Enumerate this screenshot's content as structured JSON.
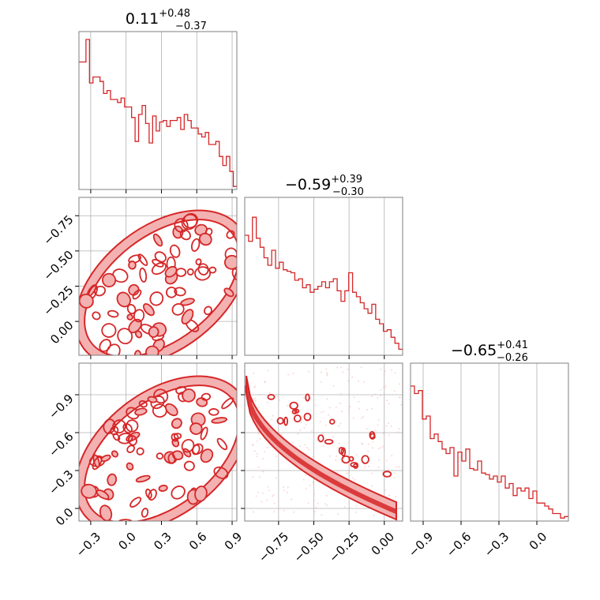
{
  "colors": {
    "series": "#d62728",
    "fill_dark": "#e35a5a",
    "fill_light": "#f3b1b1",
    "frame": "#7f7f7f",
    "grid": "#b0b0b0"
  },
  "chart_data": {
    "type": "corner",
    "series_color": "#d62728",
    "parameters": [
      {
        "title_median": "0.11",
        "title_plus": "+0.48",
        "title_minus": "−0.37",
        "range": [
          -0.4,
          0.94
        ],
        "ticks": [
          -0.3,
          0.0,
          0.3,
          0.6,
          0.9
        ],
        "tick_labels": [
          "−0.3",
          "0.0",
          "0.3",
          "0.6",
          "0.9"
        ],
        "hist_edges": [
          -0.4,
          0.94
        ],
        "hist": [
          0.85,
          0.85,
          1.0,
          0.71,
          0.75,
          0.75,
          0.72,
          0.64,
          0.66,
          0.6,
          0.6,
          0.58,
          0.61,
          0.55,
          0.55,
          0.48,
          0.32,
          0.5,
          0.56,
          0.44,
          0.31,
          0.49,
          0.39,
          0.45,
          0.46,
          0.42,
          0.46,
          0.46,
          0.48,
          0.4,
          0.5,
          0.46,
          0.41,
          0.41,
          0.37,
          0.35,
          0.38,
          0.3,
          0.3,
          0.32,
          0.22,
          0.16,
          0.22,
          0.12,
          0.02
        ]
      },
      {
        "title_median": "−0.59",
        "title_plus": "+0.39",
        "title_minus": "−0.30",
        "range": [
          -0.99,
          0.13
        ],
        "ticks": [
          -0.75,
          -0.5,
          -0.25,
          0.0
        ],
        "tick_labels": [
          "−0.75",
          "−0.50",
          "−0.25",
          "0.00"
        ],
        "hist_edges": [
          -0.99,
          0.13
        ],
        "hist": [
          0.8,
          0.76,
          0.92,
          0.78,
          0.72,
          0.65,
          0.6,
          0.7,
          0.58,
          0.62,
          0.57,
          0.56,
          0.55,
          0.5,
          0.51,
          0.45,
          0.47,
          0.42,
          0.44,
          0.46,
          0.49,
          0.45,
          0.49,
          0.51,
          0.43,
          0.36,
          0.43,
          0.55,
          0.42,
          0.39,
          0.35,
          0.31,
          0.28,
          0.34,
          0.24,
          0.21,
          0.16,
          0.17,
          0.12,
          0.08,
          0.04
        ]
      },
      {
        "title_median": "−0.65",
        "title_plus": "+0.41",
        "title_minus": "−0.26",
        "range": [
          -1.0,
          0.25
        ],
        "ticks": [
          -0.9,
          -0.6,
          -0.3,
          0.0
        ],
        "tick_labels": [
          "−0.9",
          "−0.6",
          "−0.3",
          "0.0"
        ],
        "hist_edges": [
          -1.0,
          0.25
        ],
        "hist": [
          0.9,
          0.85,
          0.87,
          0.68,
          0.7,
          0.55,
          0.58,
          0.53,
          0.48,
          0.45,
          0.49,
          0.3,
          0.46,
          0.4,
          0.48,
          0.35,
          0.34,
          0.4,
          0.32,
          0.31,
          0.28,
          0.3,
          0.26,
          0.3,
          0.22,
          0.25,
          0.17,
          0.22,
          0.2,
          0.22,
          0.15,
          0.2,
          0.12,
          0.12,
          0.1,
          0.08,
          0.05,
          0.05,
          0.02,
          0.03
        ]
      }
    ],
    "pair_plots": [
      {
        "x_param": 0,
        "y_param": 1,
        "y_ticks": [
          0.0,
          -0.25,
          -0.5,
          -0.75
        ],
        "y_tick_labels": [
          "0.00",
          "−0.25",
          "−0.50",
          "−0.75"
        ],
        "shape": "ellipse"
      },
      {
        "x_param": 0,
        "y_param": 2,
        "y_ticks": [
          0.0,
          -0.3,
          -0.6,
          -0.9
        ],
        "y_tick_labels": [
          "0.0",
          "−0.3",
          "−0.6",
          "−0.9"
        ],
        "shape": "ellipse"
      },
      {
        "x_param": 1,
        "y_param": 2,
        "shape": "band"
      }
    ],
    "grid": true
  }
}
